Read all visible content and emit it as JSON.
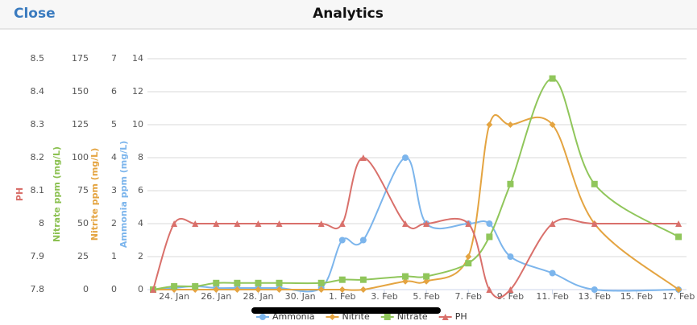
{
  "header": {
    "close": "Close",
    "title": "Analytics"
  },
  "chart_data": {
    "type": "spline",
    "x": [
      23,
      24,
      25,
      26,
      27,
      28,
      29,
      31,
      32,
      33,
      35,
      36,
      38,
      39,
      40,
      42,
      44,
      48
    ],
    "xlim": [
      22.73,
      48.38
    ],
    "xticks": [
      {
        "value": 24,
        "label": "24. Jan"
      },
      {
        "value": 26,
        "label": "26. Jan"
      },
      {
        "value": 28,
        "label": "28. Jan"
      },
      {
        "value": 30,
        "label": "30. Jan"
      },
      {
        "value": 32,
        "label": "1. Feb"
      },
      {
        "value": 34,
        "label": "3. Feb"
      },
      {
        "value": 36,
        "label": "5. Feb"
      },
      {
        "value": 38,
        "label": "7. Feb"
      },
      {
        "value": 40,
        "label": "9. Feb"
      },
      {
        "value": 42,
        "label": "11. Feb"
      },
      {
        "value": 44,
        "label": "13. Feb"
      },
      {
        "value": 46,
        "label": "15. Feb"
      },
      {
        "value": 48,
        "label": "17. Feb"
      }
    ],
    "yaxes": [
      {
        "title": "PH",
        "color": "#d9706b",
        "lim": [
          7.8,
          8.5
        ],
        "ticks": [
          7.8,
          7.9,
          8,
          8.1,
          8.2,
          8.3,
          8.4,
          8.5
        ]
      },
      {
        "title": "Nitrate ppm (mg/L)",
        "color": "#8cc152",
        "lim": [
          0,
          175
        ],
        "ticks": [
          0,
          25,
          50,
          75,
          100,
          125,
          150,
          175
        ]
      },
      {
        "title": "Nitrite ppm (mg/L)",
        "color": "#e4a441",
        "lim": [
          0,
          7
        ],
        "ticks": [
          0,
          1,
          2,
          3,
          4,
          5,
          6,
          7
        ]
      },
      {
        "title": "Ammonia ppm (mg/L)",
        "color": "#7cb5ec",
        "lim": [
          0,
          14
        ],
        "ticks": [
          0,
          2,
          4,
          6,
          8,
          10,
          12,
          14
        ],
        "grid": true
      }
    ],
    "series": [
      {
        "name": "Ammonia",
        "color": "#7cb5ec",
        "marker": "circle",
        "yaxis": 3,
        "values": [
          0,
          0.1,
          0.2,
          0.1,
          0.1,
          0.1,
          0.1,
          0.1,
          3,
          3,
          8,
          4,
          4,
          4,
          2,
          1,
          0,
          0
        ]
      },
      {
        "name": "Nitrite",
        "color": "#e4a441",
        "marker": "diamond",
        "yaxis": 2,
        "values": [
          0,
          0,
          0,
          0,
          0,
          0,
          0,
          0,
          0,
          0,
          0.25,
          0.25,
          1,
          5,
          5,
          5,
          2,
          0
        ]
      },
      {
        "name": "Nitrate",
        "color": "#90c65b",
        "marker": "square",
        "yaxis": 1,
        "values": [
          0,
          2.5,
          2.5,
          5,
          5,
          5,
          5,
          5,
          7.5,
          7.5,
          10,
          10,
          20,
          40,
          80,
          160,
          80,
          40
        ]
      },
      {
        "name": "PH",
        "color": "#d9706b",
        "marker": "triangle",
        "yaxis": 0,
        "values": [
          7.8,
          8,
          8,
          8,
          8,
          8,
          8,
          8,
          8,
          8.2,
          8,
          8,
          8,
          7.8,
          7.8,
          8,
          8,
          8
        ]
      }
    ]
  }
}
